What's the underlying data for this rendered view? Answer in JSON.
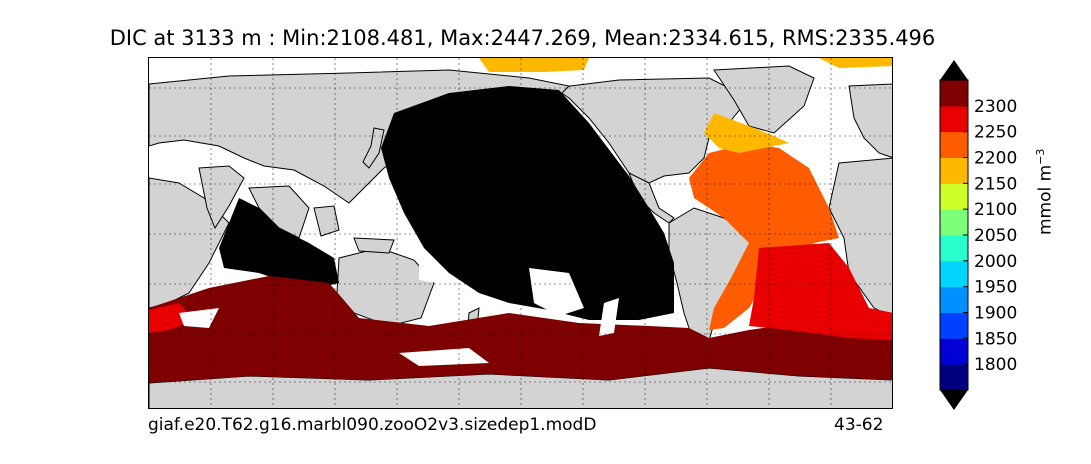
{
  "title": "DIC at 3133 m : Min:2108.481, Max:2447.269, Mean:2334.615, RMS:2335.496",
  "footer": {
    "case_name": "giaf.e20.T62.g16.marbl090.zooO2v3.sizedep1.modD",
    "years": "43-62"
  },
  "colorbar": {
    "units_base": "mmol m",
    "units_exp": "−3",
    "ticks": [
      "1800",
      "1850",
      "1900",
      "1950",
      "2000",
      "2050",
      "2100",
      "2150",
      "2200",
      "2250",
      "2300"
    ],
    "extend": "both",
    "colors": [
      "#00007f",
      "#0000d4",
      "#0040ff",
      "#0090ff",
      "#00d4ff",
      "#29ffce",
      "#7dff7a",
      "#ceff29",
      "#ffb800",
      "#ff5b00",
      "#e80000",
      "#7f0000"
    ]
  },
  "map": {
    "projection": "cylindrical",
    "land_color": "#d3d3d3",
    "no_data_color": "#ffffff",
    "gridlines": "dotted"
  },
  "legend_colors": {
    "pacific_indian_deep": "#000000",
    "southern_ocean": "#7f0000",
    "north_atlantic_deep": "#ff5b00",
    "south_atlantic": "#e80000",
    "arctic_labrador": "#ffb800"
  }
}
